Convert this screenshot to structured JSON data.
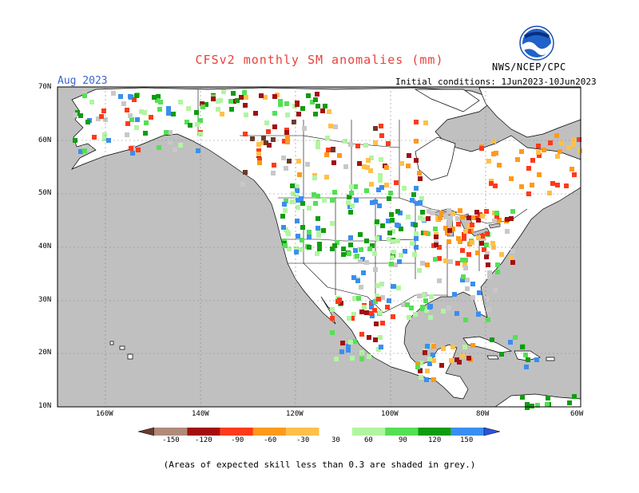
{
  "header": {
    "title": "CFSv2 monthly SM anomalies (mm)",
    "month": "Aug 2023",
    "initial_conditions": "Initial conditions: 1Jun2023-10Jun2023",
    "agency": "NWS/NCEP/CPC",
    "logo_text": "NOAA"
  },
  "map": {
    "region": "North America",
    "lat_labels": [
      "70N",
      "60N",
      "50N",
      "40N",
      "30N",
      "20N",
      "10N"
    ],
    "lon_labels": [
      "160W",
      "140W",
      "120W",
      "100W",
      "80W",
      "60W"
    ],
    "colors": {
      "ocean": "#c0c0c0",
      "land": "#ffffff",
      "border": "#000000",
      "grid": "#888888"
    }
  },
  "legend": {
    "labels": [
      "-150",
      "-120",
      "-90",
      "-60",
      "-30",
      "30",
      "60",
      "90",
      "120",
      "150"
    ],
    "colors": [
      "#6b3a2a",
      "#b08a7a",
      "#a30f0f",
      "#ff3a1a",
      "#ff9a1a",
      "#ffc04a",
      "#ffffff",
      "#b2f5a0",
      "#54e054",
      "#109c10",
      "#3a8ef0",
      "#2a52e0"
    ]
  },
  "footnote": "(Areas of expected skill less than 0.3 are shaded in grey.)"
}
